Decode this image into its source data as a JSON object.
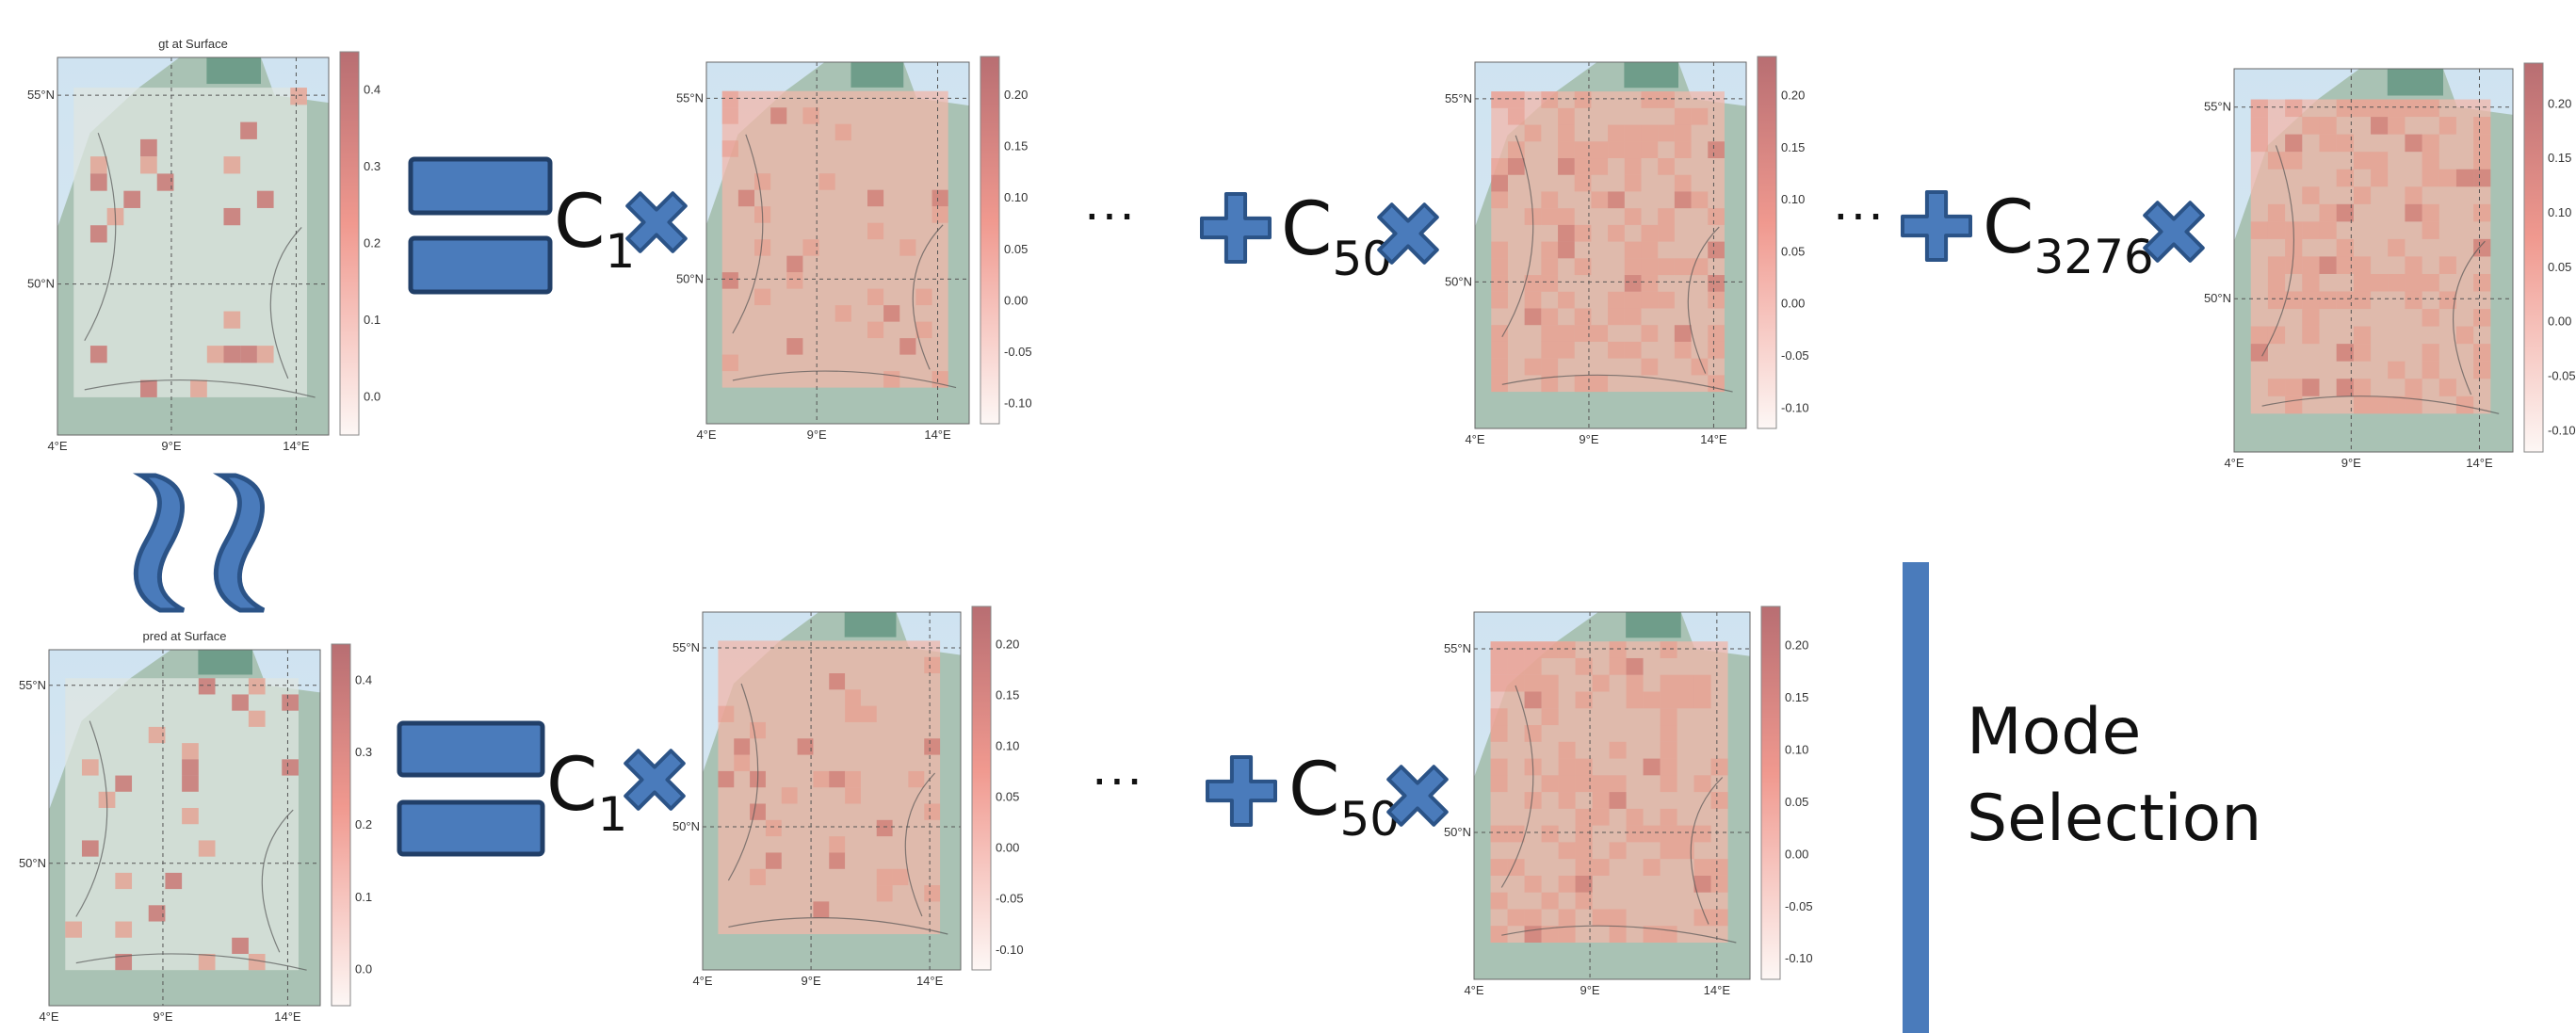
{
  "map_axes": {
    "lat": [
      "55°N",
      "50°N"
    ],
    "lon": [
      "4°E",
      "9°E",
      "14°E"
    ]
  },
  "scales": {
    "field": [
      "0.4",
      "0.3",
      "0.2",
      "0.1",
      "0.0"
    ],
    "mode": [
      "0.20",
      "0.15",
      "0.10",
      "0.05",
      "0.00",
      "-0.05",
      "-0.10"
    ]
  },
  "rows": [
    {
      "title": "gt at Surface",
      "terms": [
        {
          "coef": "C",
          "sub": "1"
        },
        {
          "coef": "C",
          "sub": "50"
        },
        {
          "coef": "C",
          "sub": "3276"
        }
      ]
    },
    {
      "title": "pred at Surface",
      "terms": [
        {
          "coef": "C",
          "sub": "1"
        },
        {
          "coef": "C",
          "sub": "50"
        }
      ]
    }
  ],
  "ellipsis": "···",
  "side_label": "Mode Selection"
}
